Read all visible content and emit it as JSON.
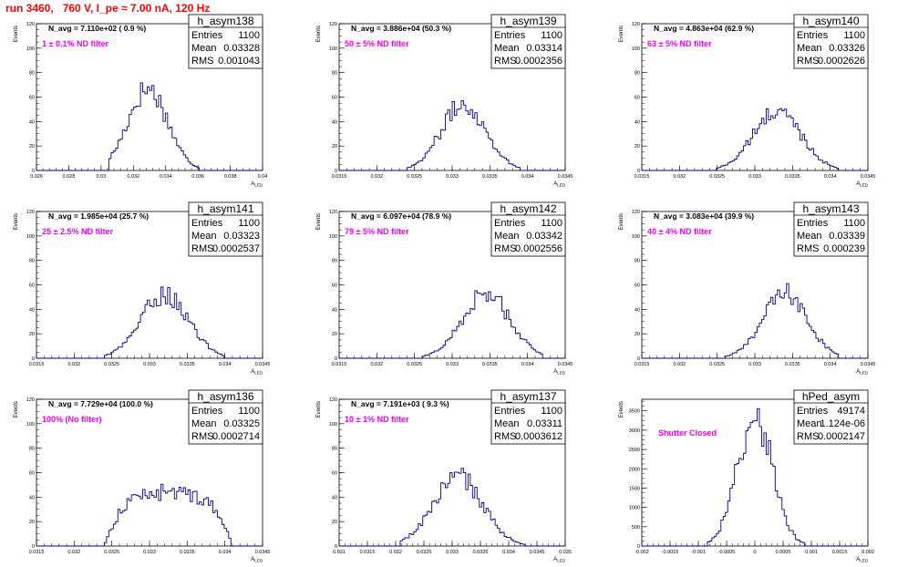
{
  "page_title": "run 3460,   760 V, I_pe ≈ 7.00 nA, 120 Hz",
  "chart_data": [
    {
      "type": "histogram",
      "name": "h_asym138",
      "annotation": "N_avg = 7.110e+02 ( 0.9 %)",
      "filter_label": "1 ± 0.1% ND filter",
      "stats": {
        "entries": "1100",
        "mean": "0.03328",
        "rms": "0.001043"
      },
      "stats_labels": {
        "entries": "Entries",
        "mean": "Mean",
        "rms": "RMS"
      },
      "xlabel": "A_LED",
      "ylabel": "Events",
      "xlim": [
        0.026,
        0.04
      ],
      "ylim": [
        0,
        120
      ],
      "x_ticks": [
        "0.026",
        "0.028",
        "0.03",
        "0.032",
        "0.034",
        "0.036",
        "0.038",
        "0.04"
      ],
      "x_tick_values": [
        0.026,
        0.028,
        0.03,
        0.032,
        0.034,
        0.036,
        0.038,
        0.04
      ],
      "y_ticks": [
        "0",
        "20",
        "40",
        "60",
        "80",
        "100",
        "120"
      ],
      "y_tick_values": [
        0,
        20,
        40,
        60,
        80,
        100,
        120
      ],
      "peak": 72,
      "peak_bin": 0.0329,
      "shape": "peaked",
      "bin_range": [
        0.0305,
        0.0365
      ]
    },
    {
      "type": "histogram",
      "name": "h_asym139",
      "annotation": "N_avg = 3.886e+04 (50.3 %)",
      "filter_label": "50 ± 5% ND filter",
      "stats": {
        "entries": "1100",
        "mean": "0.03314",
        "rms": "0.0002356"
      },
      "stats_labels": {
        "entries": "Entries",
        "mean": "Mean",
        "rms": "RMS"
      },
      "xlabel": "A_LED",
      "ylabel": "Events",
      "xlim": [
        0.0315,
        0.0345
      ],
      "ylim": [
        0,
        120
      ],
      "x_ticks": [
        "0.0315",
        "0.032",
        "0.0325",
        "0.033",
        "0.0335",
        "0.034",
        "0.0345"
      ],
      "x_tick_values": [
        0.0315,
        0.032,
        0.0325,
        0.033,
        0.0335,
        0.034,
        0.0345
      ],
      "y_ticks": [
        "0",
        "20",
        "40",
        "60",
        "80",
        "100",
        "120"
      ],
      "y_tick_values": [
        0,
        20,
        40,
        60,
        80,
        100,
        120
      ],
      "peak": 58,
      "peak_bin": 0.03315,
      "shape": "gauss",
      "bin_range": [
        0.0324,
        0.0339
      ]
    },
    {
      "type": "histogram",
      "name": "h_asym140",
      "annotation": "N_avg = 4.863e+04 (62.9 %)",
      "filter_label": "63 ± 5% ND filter",
      "stats": {
        "entries": "1100",
        "mean": "0.03326",
        "rms": "0.0002626"
      },
      "stats_labels": {
        "entries": "Entries",
        "mean": "Mean",
        "rms": "RMS"
      },
      "xlabel": "A_LED",
      "ylabel": "Events",
      "xlim": [
        0.0315,
        0.0345
      ],
      "ylim": [
        0,
        120
      ],
      "x_ticks": [
        "0.0315",
        "0.032",
        "0.0325",
        "0.033",
        "0.0335",
        "0.034",
        "0.0345"
      ],
      "x_tick_values": [
        0.0315,
        0.032,
        0.0325,
        0.033,
        0.0335,
        0.034,
        0.0345
      ],
      "y_ticks": [
        "0",
        "20",
        "40",
        "60",
        "80",
        "100",
        "120"
      ],
      "y_tick_values": [
        0,
        20,
        40,
        60,
        80,
        100,
        120
      ],
      "peak": 52,
      "peak_bin": 0.0333,
      "shape": "gauss",
      "bin_range": [
        0.0325,
        0.0341
      ]
    },
    {
      "type": "histogram",
      "name": "h_asym141",
      "annotation": "N_avg = 1.985e+04 (25.7 %)",
      "filter_label": "25 ± 2.5% ND filter",
      "stats": {
        "entries": "1100",
        "mean": "0.03323",
        "rms": "0.0002537"
      },
      "stats_labels": {
        "entries": "Entries",
        "mean": "Mean",
        "rms": "RMS"
      },
      "xlabel": "A_LED",
      "ylabel": "Events",
      "xlim": [
        0.0315,
        0.0345
      ],
      "ylim": [
        0,
        120
      ],
      "x_ticks": [
        "0.0315",
        "0.032",
        "0.0325",
        "0.033",
        "0.0335",
        "0.034",
        "0.0345"
      ],
      "x_tick_values": [
        0.0315,
        0.032,
        0.0325,
        0.033,
        0.0335,
        0.034,
        0.0345
      ],
      "y_ticks": [
        "0",
        "20",
        "40",
        "60",
        "80",
        "100",
        "120"
      ],
      "y_tick_values": [
        0,
        20,
        40,
        60,
        80,
        100,
        120
      ],
      "peak": 56,
      "peak_bin": 0.0332,
      "shape": "gauss",
      "bin_range": [
        0.0324,
        0.034
      ]
    },
    {
      "type": "histogram",
      "name": "h_asym142",
      "annotation": "N_avg = 6.097e+04 (78.9 %)",
      "filter_label": "79 ± 5% ND filter",
      "stats": {
        "entries": "1100",
        "mean": "0.03342",
        "rms": "0.0002556"
      },
      "stats_labels": {
        "entries": "Entries",
        "mean": "Mean",
        "rms": "RMS"
      },
      "xlabel": "A_LED",
      "ylabel": "Events",
      "xlim": [
        0.0315,
        0.0345
      ],
      "ylim": [
        0,
        120
      ],
      "x_ticks": [
        "0.0315",
        "0.032",
        "0.0325",
        "0.033",
        "0.0335",
        "0.034",
        "0.0345"
      ],
      "x_tick_values": [
        0.0315,
        0.032,
        0.0325,
        0.033,
        0.0335,
        0.034,
        0.0345
      ],
      "y_ticks": [
        "0",
        "20",
        "40",
        "60",
        "80",
        "100",
        "120"
      ],
      "y_tick_values": [
        0,
        20,
        40,
        60,
        80,
        100,
        120
      ],
      "peak": 57,
      "peak_bin": 0.03345,
      "shape": "gauss",
      "bin_range": [
        0.0326,
        0.0342
      ]
    },
    {
      "type": "histogram",
      "name": "h_asym143",
      "annotation": "N_avg = 3.083e+04 (39.9 %)",
      "filter_label": "40 ± 4% ND filter",
      "stats": {
        "entries": "1100",
        "mean": "0.03339",
        "rms": "0.000239"
      },
      "stats_labels": {
        "entries": "Entries",
        "mean": "Mean",
        "rms": "RMS"
      },
      "xlabel": "A_LED",
      "ylabel": "Events",
      "xlim": [
        0.0315,
        0.0345
      ],
      "ylim": [
        0,
        120
      ],
      "x_ticks": [
        "0.0315",
        "0.032",
        "0.0325",
        "0.033",
        "0.0335",
        "0.034",
        "0.0345"
      ],
      "x_tick_values": [
        0.0315,
        0.032,
        0.0325,
        0.033,
        0.0335,
        0.034,
        0.0345
      ],
      "y_ticks": [
        "0",
        "20",
        "40",
        "60",
        "80",
        "100",
        "120"
      ],
      "y_tick_values": [
        0,
        20,
        40,
        60,
        80,
        100,
        120
      ],
      "peak": 57,
      "peak_bin": 0.0334,
      "shape": "gauss",
      "bin_range": [
        0.0326,
        0.0341
      ]
    },
    {
      "type": "histogram",
      "name": "h_asym136",
      "annotation": "N_avg = 7.729e+04 (100.0 %)",
      "filter_label": "100% (No filter)",
      "stats": {
        "entries": "1100",
        "mean": "0.03325",
        "rms": "0.0002714"
      },
      "stats_labels": {
        "entries": "Entries",
        "mean": "Mean",
        "rms": "RMS"
      },
      "xlabel": "A_LED",
      "ylabel": "Events",
      "xlim": [
        0.0315,
        0.0345
      ],
      "ylim": [
        0,
        120
      ],
      "x_ticks": [
        "0.0315",
        "0.032",
        "0.0325",
        "0.033",
        "0.0335",
        "0.034",
        "0.0345"
      ],
      "x_tick_values": [
        0.0315,
        0.032,
        0.0325,
        0.033,
        0.0335,
        0.034,
        0.0345
      ],
      "y_ticks": [
        "0",
        "20",
        "40",
        "60",
        "80",
        "100",
        "120"
      ],
      "y_tick_values": [
        0,
        20,
        40,
        60,
        80,
        100,
        120
      ],
      "peak": 47,
      "peak_bin": 0.0333,
      "shape": "flat",
      "bin_range": [
        0.0324,
        0.0341
      ]
    },
    {
      "type": "histogram",
      "name": "h_asym137",
      "annotation": "N_avg = 7.191e+03 ( 9.3 %)",
      "filter_label": "10 ± 1% ND filter",
      "stats": {
        "entries": "1100",
        "mean": "0.03311",
        "rms": "0.0003612"
      },
      "stats_labels": {
        "entries": "Entries",
        "mean": "Mean",
        "rms": "RMS"
      },
      "xlabel": "A_LED",
      "ylabel": "Events",
      "xlim": [
        0.031,
        0.035
      ],
      "ylim": [
        0,
        120
      ],
      "x_ticks": [
        "0.031",
        "0.0315",
        "0.032",
        "0.0325",
        "0.033",
        "0.0335",
        "0.034",
        "0.0345",
        "0.035"
      ],
      "x_tick_values": [
        0.031,
        0.0315,
        0.032,
        0.0325,
        0.033,
        0.0335,
        0.034,
        0.0345,
        0.035
      ],
      "y_ticks": [
        "0",
        "20",
        "40",
        "60",
        "80",
        "100",
        "120"
      ],
      "y_tick_values": [
        0,
        20,
        40,
        60,
        80,
        100,
        120
      ],
      "peak": 61,
      "peak_bin": 0.0331,
      "shape": "gauss",
      "bin_range": [
        0.0321,
        0.0343
      ]
    },
    {
      "type": "histogram",
      "name": "hPed_asym",
      "annotation": "",
      "filter_label": "Shutter Closed",
      "stats": {
        "entries": "49174",
        "mean": "1.124e-06",
        "rms": "0.0002147"
      },
      "stats_labels": {
        "entries": "Entries",
        "mean": "Mean",
        "rms": "RMS"
      },
      "xlabel": "A_LED",
      "ylabel": "Events",
      "xlim": [
        -0.002,
        0.002
      ],
      "ylim": [
        0,
        3800
      ],
      "x_ticks": [
        "-0.002",
        "-0.0015",
        "-0.001",
        "-0.0005",
        "0",
        "0.0005",
        "0.001",
        "0.0015",
        "0.002"
      ],
      "x_tick_values": [
        -0.002,
        -0.0015,
        -0.001,
        -0.0005,
        0,
        0.0005,
        0.001,
        0.0015,
        0.002
      ],
      "y_ticks": [
        "0",
        "500",
        "1000",
        "1500",
        "2000",
        "2500",
        "3000",
        "3500"
      ],
      "y_tick_values": [
        0,
        500,
        1000,
        1500,
        2000,
        2500,
        3000,
        3500
      ],
      "peak": 3620,
      "peak_bin": 0.0,
      "shape": "narrow",
      "bin_range": [
        -0.0009,
        0.0009
      ]
    }
  ],
  "colors": {
    "histogram": "#000080",
    "title": "#ff0000",
    "filter": "#ee00ee"
  }
}
